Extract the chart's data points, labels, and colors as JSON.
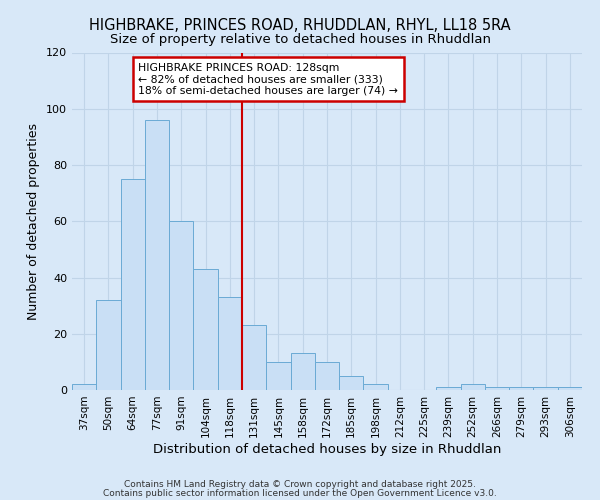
{
  "title": "HIGHBRAKE, PRINCES ROAD, RHUDDLAN, RHYL, LL18 5RA",
  "subtitle": "Size of property relative to detached houses in Rhuddlan",
  "xlabel": "Distribution of detached houses by size in Rhuddlan",
  "ylabel": "Number of detached properties",
  "categories": [
    "37sqm",
    "50sqm",
    "64sqm",
    "77sqm",
    "91sqm",
    "104sqm",
    "118sqm",
    "131sqm",
    "145sqm",
    "158sqm",
    "172sqm",
    "185sqm",
    "198sqm",
    "212sqm",
    "225sqm",
    "239sqm",
    "252sqm",
    "266sqm",
    "279sqm",
    "293sqm",
    "306sqm"
  ],
  "values": [
    2,
    32,
    75,
    96,
    60,
    43,
    33,
    23,
    10,
    13,
    10,
    5,
    2,
    0,
    0,
    1,
    2,
    1,
    1,
    1,
    1
  ],
  "bar_color": "#c9dff5",
  "bar_edge_color": "#6aaad4",
  "red_line_index": 7,
  "annotation_line1": "HIGHBRAKE PRINCES ROAD: 128sqm",
  "annotation_line2": "← 82% of detached houses are smaller (333)",
  "annotation_line3": "18% of semi-detached houses are larger (74) →",
  "annotation_box_color": "#ffffff",
  "annotation_box_edge": "#cc0000",
  "ylim": [
    0,
    120
  ],
  "yticks": [
    0,
    20,
    40,
    60,
    80,
    100,
    120
  ],
  "grid_color": "#c0d4e8",
  "background_color": "#d8e8f8",
  "plot_background": "#d8e8f8",
  "footer_line1": "Contains HM Land Registry data © Crown copyright and database right 2025.",
  "footer_line2": "Contains public sector information licensed under the Open Government Licence v3.0."
}
